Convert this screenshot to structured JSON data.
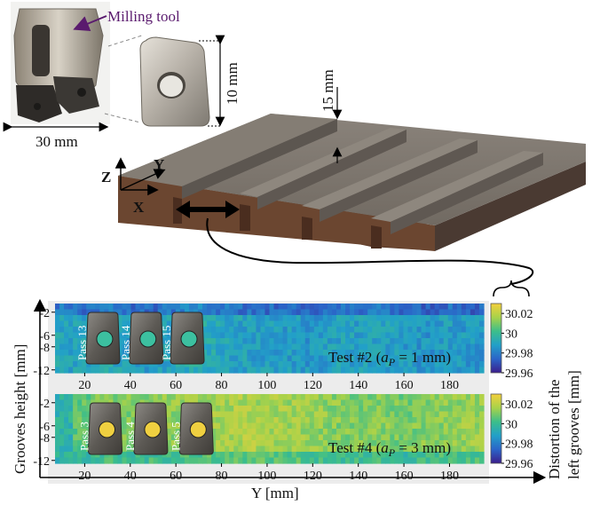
{
  "labels": {
    "milling_tool": "Milling tool",
    "dim_30": "30 mm",
    "dim_10": "10 mm",
    "dim_15": "15 mm",
    "axis_x": "X",
    "axis_y": "Y",
    "axis_z": "Z"
  },
  "chart_data": {
    "type": "heatmap",
    "ylabel": "Grooves height [mm]",
    "xlabel": "Y [mm]",
    "colorbar_label_line1": "Distortion of the",
    "colorbar_label_line2": "left grooves [mm]",
    "x_ticks": [
      20,
      40,
      60,
      80,
      100,
      120,
      140,
      160,
      180
    ],
    "y_ticks": [
      -2,
      -6,
      -8,
      -12
    ],
    "xlim": [
      7,
      195
    ],
    "ylim": [
      -12.5,
      -0.5
    ],
    "colorbar_ticks": [
      30.02,
      30,
      29.98,
      29.96
    ],
    "colorbar_range": [
      29.96,
      30.03
    ],
    "colormap": [
      "#3b1e8c",
      "#2b64c8",
      "#22a0c8",
      "#3cbe8a",
      "#a8d24a",
      "#f4d03c"
    ],
    "panels": [
      {
        "title_prefix": "Test #2 (",
        "title_symbol": "a",
        "title_sub": "P",
        "title_suffix": " = 1 mm)",
        "inserts": [
          {
            "label": "Pass 13",
            "y": 28
          },
          {
            "label": "Pass 14",
            "y": 47
          },
          {
            "label": "Pass 15",
            "y": 65
          }
        ],
        "profile_y": [
          8,
          20,
          30,
          40,
          50,
          60,
          70,
          80,
          90,
          100,
          110,
          120,
          130,
          140,
          150,
          160,
          170,
          180,
          190
        ],
        "profile_distortion": [
          29.991,
          29.989,
          29.993,
          29.988,
          29.987,
          29.991,
          29.995,
          29.99,
          29.989,
          29.988,
          29.987,
          29.986,
          29.989,
          29.988,
          29.99,
          29.987,
          29.985,
          29.988,
          29.986
        ]
      },
      {
        "title_prefix": "Test #4 (",
        "title_symbol": "a",
        "title_sub": "P",
        "title_suffix": " = 3 mm)",
        "inserts": [
          {
            "label": "Pass 3",
            "y": 29
          },
          {
            "label": "Pass 4",
            "y": 49
          },
          {
            "label": "Pass 5",
            "y": 69
          }
        ],
        "profile_y": [
          8,
          20,
          30,
          40,
          50,
          60,
          70,
          80,
          90,
          100,
          110,
          120,
          130,
          140,
          150,
          160,
          170,
          180,
          190
        ],
        "profile_distortion": [
          30.005,
          30.007,
          30.012,
          30.01,
          30.012,
          30.013,
          30.014,
          30.016,
          30.017,
          30.016,
          30.015,
          30.014,
          30.012,
          30.01,
          30.012,
          30.009,
          30.012,
          30.013,
          30.014
        ]
      }
    ]
  }
}
